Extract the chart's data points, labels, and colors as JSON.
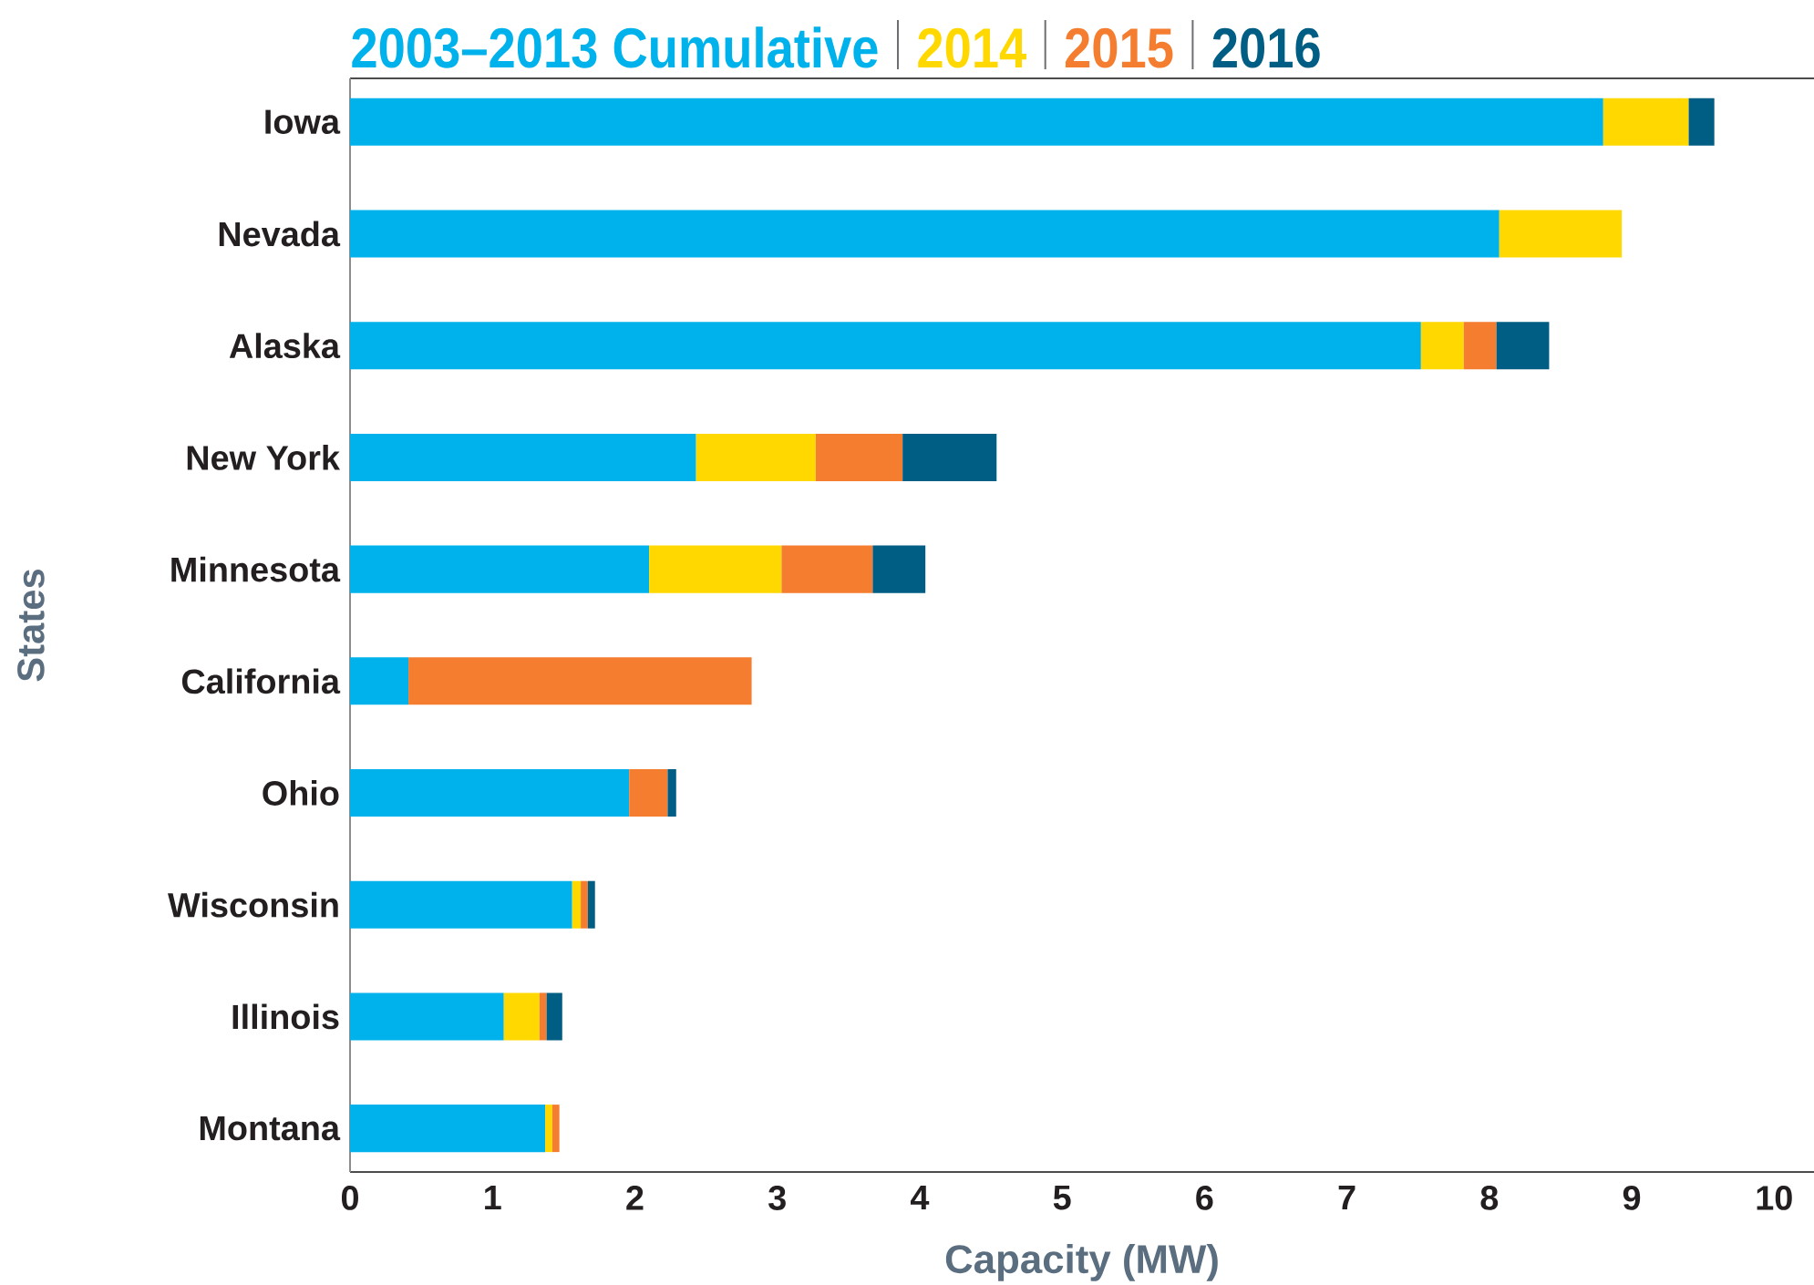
{
  "chart_data": {
    "type": "bar",
    "orientation": "horizontal",
    "stacked": true,
    "categories": [
      "Iowa",
      "Nevada",
      "Alaska",
      "New York",
      "Minnesota",
      "California",
      "Ohio",
      "Wisconsin",
      "Illinois",
      "Montana"
    ],
    "series": [
      {
        "name": "2003–2013 Cumulative",
        "color": "#00b2eb",
        "values": [
          8.8,
          8.07,
          7.52,
          2.43,
          2.1,
          0.41,
          1.96,
          1.56,
          1.08,
          1.37
        ]
      },
      {
        "name": "2014",
        "color": "#ffd800",
        "values": [
          0.6,
          0.86,
          0.3,
          0.84,
          0.93,
          null,
          null,
          0.06,
          0.25,
          0.05
        ]
      },
      {
        "name": "2015",
        "color": "#f47d30",
        "values": [
          null,
          null,
          0.23,
          0.61,
          0.64,
          2.41,
          0.27,
          0.05,
          0.05,
          0.05
        ]
      },
      {
        "name": "2016",
        "color": "#005e85",
        "values": [
          0.18,
          null,
          0.37,
          0.66,
          0.37,
          null,
          0.06,
          0.05,
          0.11,
          null
        ]
      }
    ],
    "xlabel": "Capacity (MW)",
    "ylabel": "States",
    "xlim": [
      0,
      10.28
    ],
    "xticks": [
      0,
      1,
      2,
      3,
      4,
      5,
      6,
      7,
      8,
      9,
      10
    ],
    "legend": "top"
  }
}
